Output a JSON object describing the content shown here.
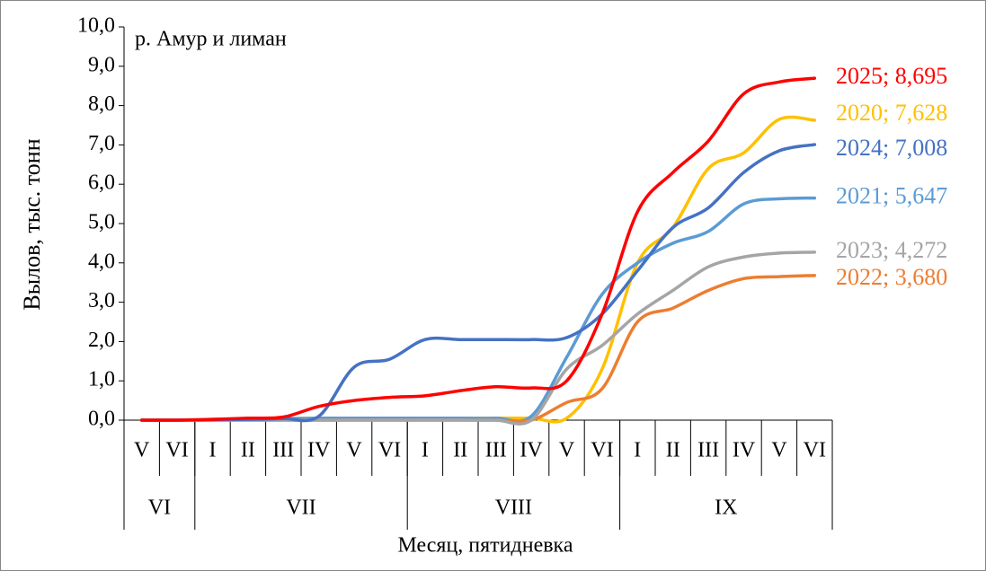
{
  "chart_data": {
    "type": "line",
    "annotation": "р. Амур и лиман",
    "y_label": "Вылов, тыс. тонн",
    "x_label": "Месяц, пятидневка",
    "categories": [
      "V",
      "VI",
      "I",
      "II",
      "III",
      "IV",
      "V",
      "VI",
      "I",
      "II",
      "III",
      "IV",
      "V",
      "VI",
      "I",
      "II",
      "III",
      "IV",
      "V",
      "VI"
    ],
    "groups": [
      {
        "label": "VI",
        "span": 2
      },
      {
        "label": "VII",
        "span": 6
      },
      {
        "label": "VIII",
        "span": 6
      },
      {
        "label": "IX",
        "span": 6
      }
    ],
    "ylim": [
      0,
      10
    ],
    "yticks": [
      {
        "value": 0,
        "label": "0,0"
      },
      {
        "value": 1,
        "label": "1,0"
      },
      {
        "value": 2,
        "label": "2,0"
      },
      {
        "value": 3,
        "label": "3,0"
      },
      {
        "value": 4,
        "label": "4,0"
      },
      {
        "value": 5,
        "label": "5,0"
      },
      {
        "value": 6,
        "label": "6,0"
      },
      {
        "value": 7,
        "label": "7,0"
      },
      {
        "value": 8,
        "label": "8,0"
      },
      {
        "value": 9,
        "label": "9,0"
      },
      {
        "value": 10,
        "label": "10,0"
      }
    ],
    "series": [
      {
        "name": "2020",
        "color": "#ffc000",
        "values": [
          0,
          0,
          0.02,
          0.03,
          0.04,
          0.05,
          0.05,
          0.05,
          0.05,
          0.05,
          0.05,
          0.05,
          0.05,
          1.3,
          4.0,
          4.9,
          6.4,
          6.8,
          7.65,
          7.628
        ],
        "value_labels": [
          null,
          null,
          null,
          null,
          null,
          null,
          null,
          null,
          null,
          null,
          null,
          null,
          null,
          null,
          null,
          null,
          null,
          null,
          null,
          "2020; 7,628"
        ]
      },
      {
        "name": "2021",
        "color": "#5b9bd5",
        "values": [
          0,
          0,
          0.02,
          0.03,
          0.04,
          0.05,
          0.05,
          0.05,
          0.05,
          0.05,
          0.05,
          0.1,
          1.6,
          3.2,
          4.0,
          4.5,
          4.8,
          5.5,
          5.63,
          5.647
        ],
        "value_labels": [
          null,
          null,
          null,
          null,
          null,
          null,
          null,
          null,
          null,
          null,
          null,
          null,
          null,
          null,
          null,
          null,
          null,
          null,
          null,
          "2021; 5,647"
        ]
      },
      {
        "name": "2022",
        "color": "#ed7d31",
        "values": [
          0,
          0,
          0,
          0,
          0,
          0,
          0,
          0,
          0,
          0,
          0,
          0,
          0.45,
          0.8,
          2.5,
          2.85,
          3.3,
          3.6,
          3.65,
          3.68
        ],
        "value_labels": [
          null,
          null,
          null,
          null,
          null,
          null,
          null,
          null,
          null,
          null,
          null,
          null,
          null,
          null,
          null,
          null,
          null,
          null,
          null,
          "2022; 3,680"
        ]
      },
      {
        "name": "2023",
        "color": "#a5a5a5",
        "values": [
          0,
          0,
          0,
          0,
          0,
          0,
          0,
          0,
          0,
          0,
          0,
          0,
          1.3,
          1.9,
          2.7,
          3.3,
          3.9,
          4.15,
          4.25,
          4.272
        ],
        "value_labels": [
          null,
          null,
          null,
          null,
          null,
          null,
          null,
          null,
          null,
          null,
          null,
          null,
          null,
          null,
          null,
          null,
          null,
          null,
          null,
          "2023; 4,272"
        ]
      },
      {
        "name": "2024",
        "color": "#4472c4",
        "values": [
          0,
          0,
          0.01,
          0.02,
          0.04,
          0.1,
          1.35,
          1.55,
          2.05,
          2.05,
          2.05,
          2.05,
          2.1,
          2.7,
          3.8,
          4.9,
          5.4,
          6.3,
          6.85,
          7.008
        ],
        "value_labels": [
          null,
          null,
          null,
          null,
          null,
          null,
          null,
          null,
          null,
          null,
          null,
          null,
          null,
          null,
          null,
          null,
          null,
          null,
          null,
          "2024; 7,008"
        ]
      },
      {
        "name": "2025",
        "color": "#ff0000",
        "values": [
          0,
          0,
          0.02,
          0.05,
          0.08,
          0.35,
          0.5,
          0.58,
          0.62,
          0.75,
          0.85,
          0.82,
          1.0,
          2.7,
          5.3,
          6.3,
          7.1,
          8.3,
          8.6,
          8.695
        ],
        "value_labels": [
          null,
          null,
          null,
          null,
          null,
          null,
          null,
          null,
          null,
          null,
          null,
          null,
          null,
          null,
          null,
          null,
          null,
          null,
          null,
          "2025; 8,695"
        ]
      }
    ]
  }
}
